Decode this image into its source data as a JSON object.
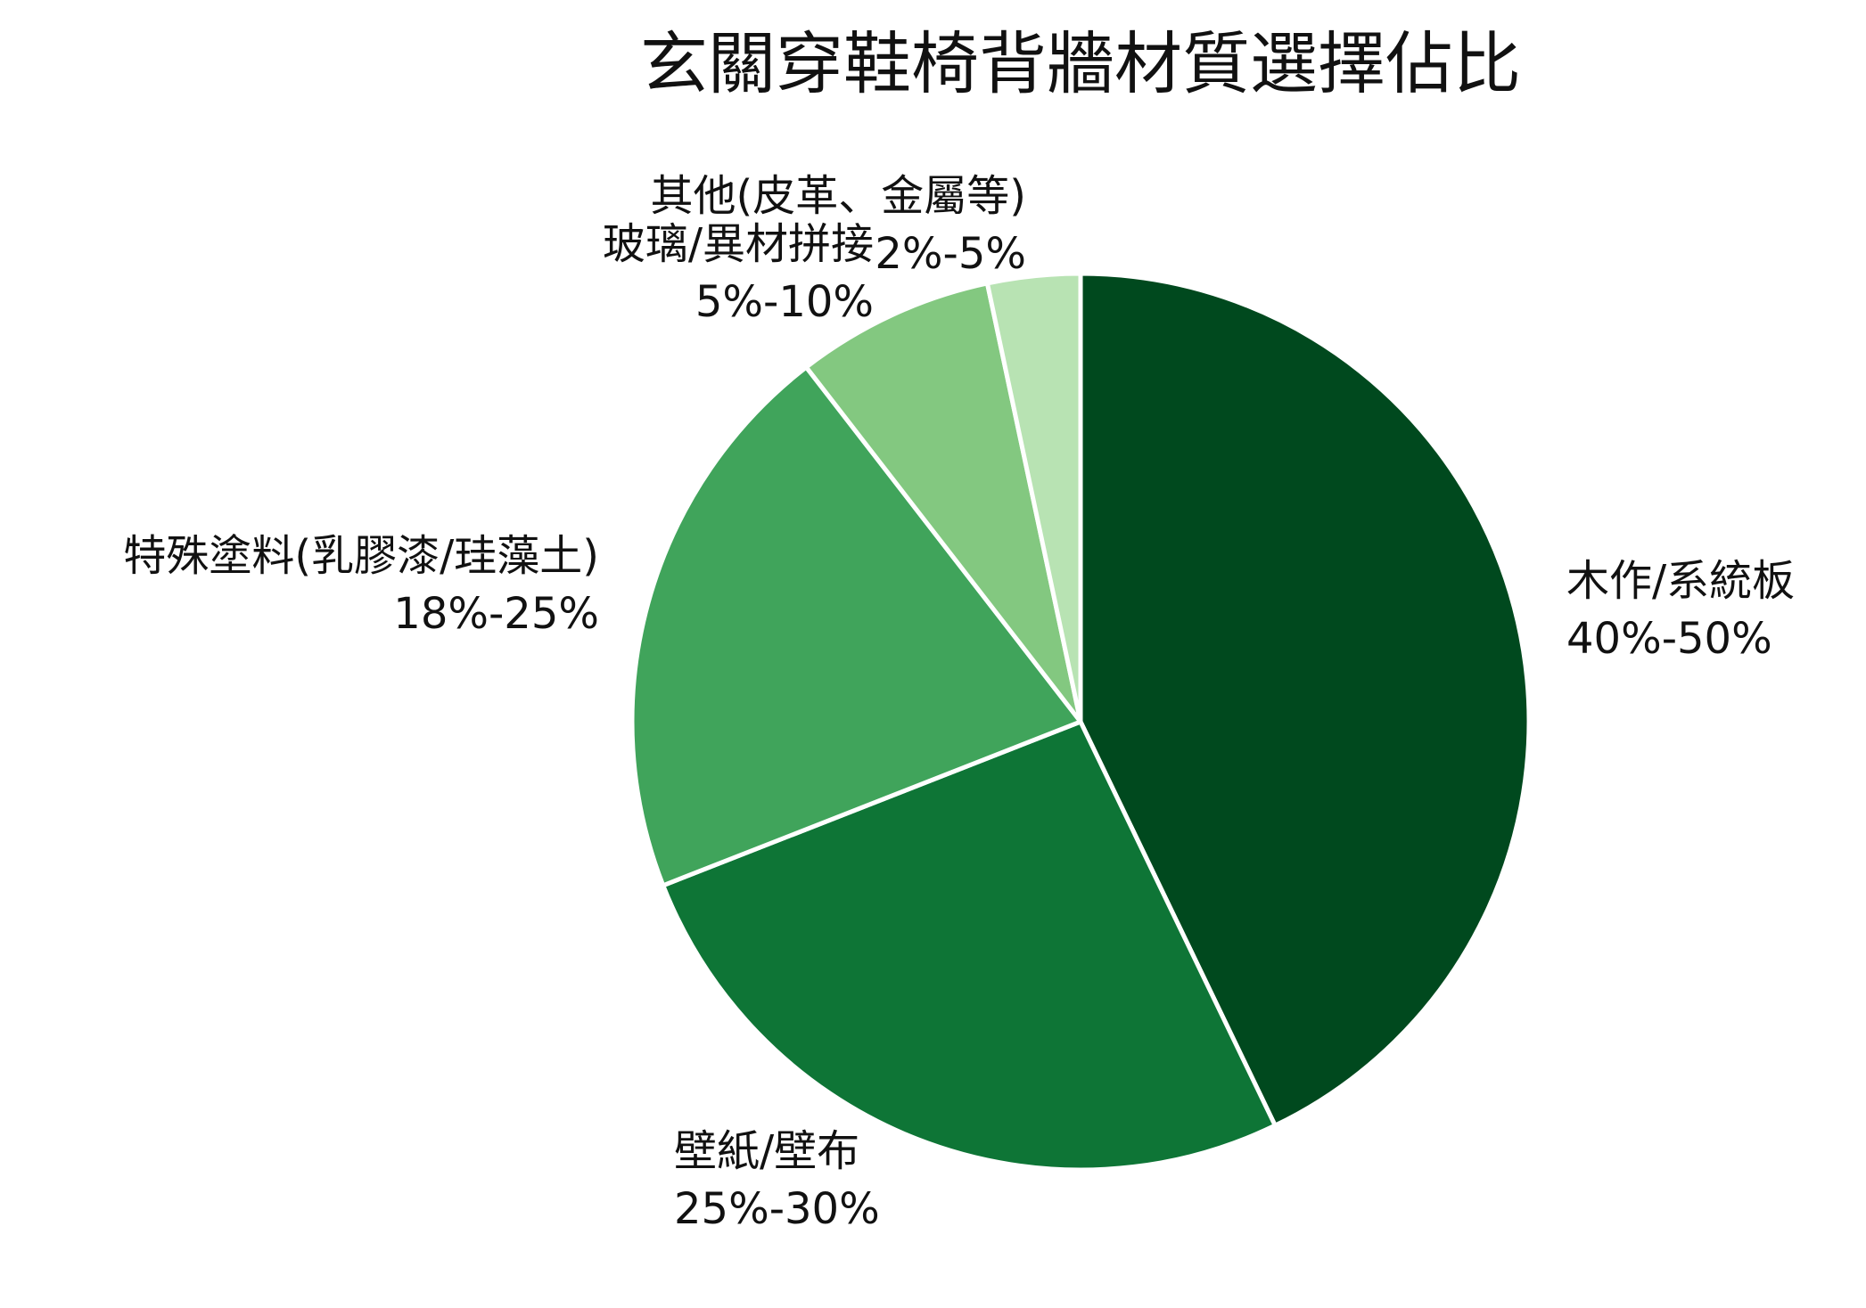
{
  "chart_data": {
    "type": "pie",
    "title": "玄關穿鞋椅背牆材質選擇佔比",
    "slices": [
      {
        "label": "木作/系統板",
        "range_text": "40%-50%",
        "value": 45,
        "color": "#00491e"
      },
      {
        "label": "壁紙/壁布",
        "range_text": "25%-30%",
        "value": 27.5,
        "color": "#0e7536"
      },
      {
        "label": "特殊塗料(乳膠漆/珪藻土)",
        "range_text": "18%-25%",
        "value": 21.5,
        "color": "#40a45b"
      },
      {
        "label": "玻璃/異材拼接",
        "range_text": "5%-10%",
        "value": 7.5,
        "color": "#83c880"
      },
      {
        "label": "其他(皮革、金屬等)",
        "range_text": "2%-5%",
        "value": 3.5,
        "color": "#b8e3b3"
      }
    ],
    "start_angle": "12 o'clock",
    "direction": "clockwise",
    "legend": "none"
  }
}
